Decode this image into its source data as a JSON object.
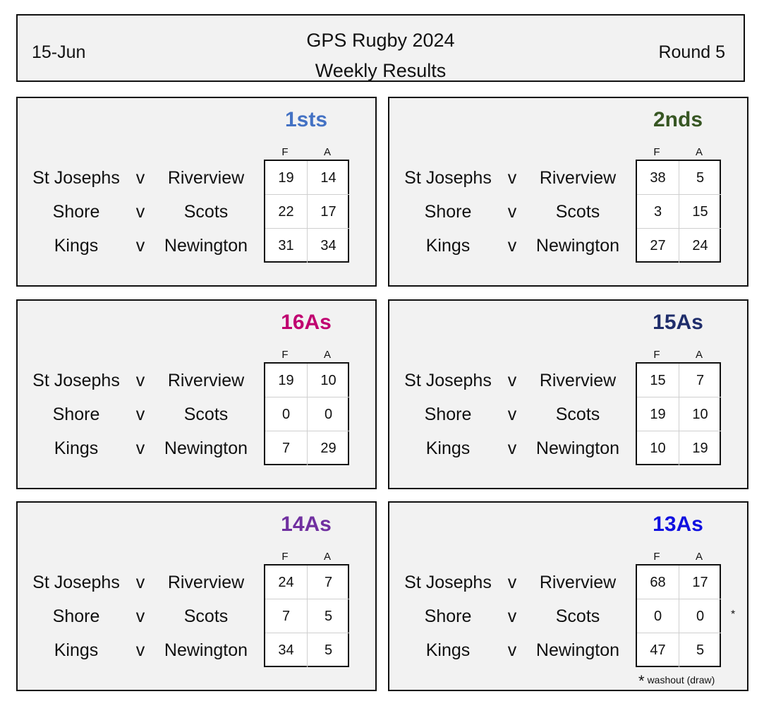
{
  "header": {
    "date": "15-Jun",
    "title_line1": "GPS Rugby 2024",
    "title_line2": "Weekly Results",
    "round": "Round 5"
  },
  "columns": {
    "for": "F",
    "against": "A",
    "vs": "v"
  },
  "panels": [
    {
      "grade": "1sts",
      "color": "#4472c4",
      "matches": [
        {
          "home": "St Josephs",
          "away": "Riverview",
          "f": "19",
          "a": "14"
        },
        {
          "home": "Shore",
          "away": "Scots",
          "f": "22",
          "a": "17"
        },
        {
          "home": "Kings",
          "away": "Newington",
          "f": "31",
          "a": "34"
        }
      ]
    },
    {
      "grade": "2nds",
      "color": "#375623",
      "matches": [
        {
          "home": "St Josephs",
          "away": "Riverview",
          "f": "38",
          "a": "5"
        },
        {
          "home": "Shore",
          "away": "Scots",
          "f": "3",
          "a": "15"
        },
        {
          "home": "Kings",
          "away": "Newington",
          "f": "27",
          "a": "24"
        }
      ]
    },
    {
      "grade": "16As",
      "color": "#c00070",
      "matches": [
        {
          "home": "St Josephs",
          "away": "Riverview",
          "f": "19",
          "a": "10"
        },
        {
          "home": "Shore",
          "away": "Scots",
          "f": "0",
          "a": "0"
        },
        {
          "home": "Kings",
          "away": "Newington",
          "f": "7",
          "a": "29"
        }
      ]
    },
    {
      "grade": "15As",
      "color": "#1f2d6b",
      "matches": [
        {
          "home": "St Josephs",
          "away": "Riverview",
          "f": "15",
          "a": "7"
        },
        {
          "home": "Shore",
          "away": "Scots",
          "f": "19",
          "a": "10"
        },
        {
          "home": "Kings",
          "away": "Newington",
          "f": "10",
          "a": "19"
        }
      ]
    },
    {
      "grade": "14As",
      "color": "#7030a0",
      "matches": [
        {
          "home": "St Josephs",
          "away": "Riverview",
          "f": "24",
          "a": "7"
        },
        {
          "home": "Shore",
          "away": "Scots",
          "f": "7",
          "a": "5"
        },
        {
          "home": "Kings",
          "away": "Newington",
          "f": "34",
          "a": "5"
        }
      ]
    },
    {
      "grade": "13As",
      "color": "#1010e0",
      "matches": [
        {
          "home": "St Josephs",
          "away": "Riverview",
          "f": "68",
          "a": "17"
        },
        {
          "home": "Shore",
          "away": "Scots",
          "f": "0",
          "a": "0"
        },
        {
          "home": "Kings",
          "away": "Newington",
          "f": "47",
          "a": "5"
        }
      ]
    }
  ],
  "footnote": {
    "marker": "*",
    "text": "washout (draw)"
  }
}
